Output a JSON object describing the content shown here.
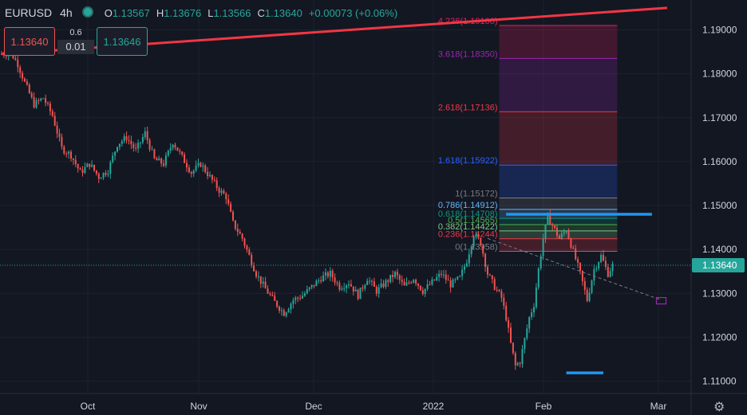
{
  "header": {
    "symbol": "EURUSD",
    "timeframe": "4h",
    "ohlc": [
      {
        "k": "O",
        "v": "1.13567"
      },
      {
        "k": "H",
        "v": "1.13676"
      },
      {
        "k": "L",
        "v": "1.13566"
      },
      {
        "k": "C",
        "v": "1.13640"
      }
    ],
    "change": "+0.00073 (+0.06%)"
  },
  "trade_panel": {
    "sell_price": "1.13640",
    "spread": "0.6",
    "lot": "0.01",
    "buy_price": "1.13646"
  },
  "colors": {
    "bg": "#131722",
    "up": "#26a69a",
    "down": "#ef5350",
    "grid": "#1e222d",
    "axis_text": "#d1d4dc",
    "trendline": "#f23645",
    "level_line": "#2196f3"
  },
  "icons": [
    "gear-icon",
    "live-dot-icon"
  ],
  "chart_data": {
    "type": "candlestick",
    "y_ticks": [
      "1.19000",
      "1.18000",
      "1.17000",
      "1.16000",
      "1.15000",
      "1.14000",
      "1.13000",
      "1.12000",
      "1.11000"
    ],
    "x_ticks": [
      "Oct",
      "Nov",
      "Dec",
      "2022",
      "Feb",
      "Mar"
    ],
    "ylim": [
      1.1072,
      1.1968
    ],
    "last_price_label": "1.13640",
    "last_price": 1.1364,
    "price_path": [
      [
        0,
        1.1845
      ],
      [
        4,
        1.1848
      ],
      [
        7,
        1.1822
      ],
      [
        10,
        1.178
      ],
      [
        14,
        1.173
      ],
      [
        18,
        1.1745
      ],
      [
        22,
        1.1705
      ],
      [
        26,
        1.163
      ],
      [
        30,
        1.1615
      ],
      [
        34,
        1.1575
      ],
      [
        38,
        1.1595
      ],
      [
        42,
        1.1565
      ],
      [
        46,
        1.158
      ],
      [
        50,
        1.164
      ],
      [
        54,
        1.1655
      ],
      [
        58,
        1.1625
      ],
      [
        62,
        1.1665
      ],
      [
        66,
        1.1605
      ],
      [
        70,
        1.1595
      ],
      [
        74,
        1.1645
      ],
      [
        78,
        1.161
      ],
      [
        82,
        1.1575
      ],
      [
        86,
        1.1595
      ],
      [
        90,
        1.1565
      ],
      [
        94,
        1.1535
      ],
      [
        97,
        1.152
      ],
      [
        100,
        1.146
      ],
      [
        104,
        1.1425
      ],
      [
        107,
        1.1385
      ],
      [
        110,
        1.1345
      ],
      [
        114,
        1.131
      ],
      [
        118,
        1.128
      ],
      [
        122,
        1.1255
      ],
      [
        126,
        1.1285
      ],
      [
        130,
        1.1295
      ],
      [
        134,
        1.1315
      ],
      [
        138,
        1.1335
      ],
      [
        142,
        1.1345
      ],
      [
        146,
        1.1315
      ],
      [
        150,
        1.1325
      ],
      [
        154,
        1.1295
      ],
      [
        158,
        1.1335
      ],
      [
        162,
        1.1305
      ],
      [
        166,
        1.1325
      ],
      [
        170,
        1.1345
      ],
      [
        174,
        1.1315
      ],
      [
        178,
        1.1335
      ],
      [
        182,
        1.1305
      ],
      [
        186,
        1.1325
      ],
      [
        190,
        1.1345
      ],
      [
        194,
        1.132
      ],
      [
        198,
        1.1335
      ],
      [
        201,
        1.1375
      ],
      [
        204,
        1.1435
      ],
      [
        207,
        1.1415
      ],
      [
        210,
        1.1345
      ],
      [
        213,
        1.1315
      ],
      [
        216,
        1.129
      ],
      [
        218,
        1.1245
      ],
      [
        220,
        1.1185
      ],
      [
        222,
        1.1135
      ],
      [
        224,
        1.1145
      ],
      [
        226,
        1.1195
      ],
      [
        228,
        1.1245
      ],
      [
        230,
        1.1275
      ],
      [
        232,
        1.1355
      ],
      [
        234,
        1.1425
      ],
      [
        236,
        1.1475
      ],
      [
        238,
        1.1455
      ],
      [
        241,
        1.1425
      ],
      [
        244,
        1.1445
      ],
      [
        247,
        1.1395
      ],
      [
        250,
        1.1345
      ],
      [
        253,
        1.1285
      ],
      [
        256,
        1.1355
      ],
      [
        259,
        1.1385
      ],
      [
        262,
        1.1345
      ],
      [
        264,
        1.1364
      ]
    ],
    "fib_levels": [
      {
        "label": "0(1.13958)",
        "price": 1.13958,
        "color": "#787b86"
      },
      {
        "label": "0.236(1.14244)",
        "price": 1.14244,
        "color": "#f23645"
      },
      {
        "label": "0.382(1.14422)",
        "price": 1.14422,
        "color": "#81c784"
      },
      {
        "label": "0.5(1.14565)",
        "price": 1.14565,
        "color": "#4caf50"
      },
      {
        "label": "0.618(1.14708)",
        "price": 1.14708,
        "color": "#089981"
      },
      {
        "label": "0.786(1.14912)",
        "price": 1.14912,
        "color": "#64b5f6"
      },
      {
        "label": "1(1.15172)",
        "price": 1.15172,
        "color": "#787b86"
      },
      {
        "label": "1.618(1.15922)",
        "price": 1.15922,
        "color": "#2962ff"
      },
      {
        "label": "2.618(1.17136)",
        "price": 1.17136,
        "color": "#f23645"
      },
      {
        "label": "3.618(1.18350)",
        "price": 1.1835,
        "color": "#9c27b0"
      },
      {
        "label": "4.236(1.19100)",
        "price": 1.191,
        "color": "#e91e63"
      }
    ],
    "trendline": {
      "from": [
        0,
        1.1845
      ],
      "to": [
        350,
        1.195
      ]
    },
    "horizontal_segments": [
      {
        "price": 1.148,
        "from": 218,
        "to": 281
      },
      {
        "price": 1.1119,
        "from": 244,
        "to": 260
      }
    ],
    "dashed_projection": {
      "from": [
        210,
        1.1425
      ],
      "to": [
        285,
        1.1285
      ]
    }
  }
}
